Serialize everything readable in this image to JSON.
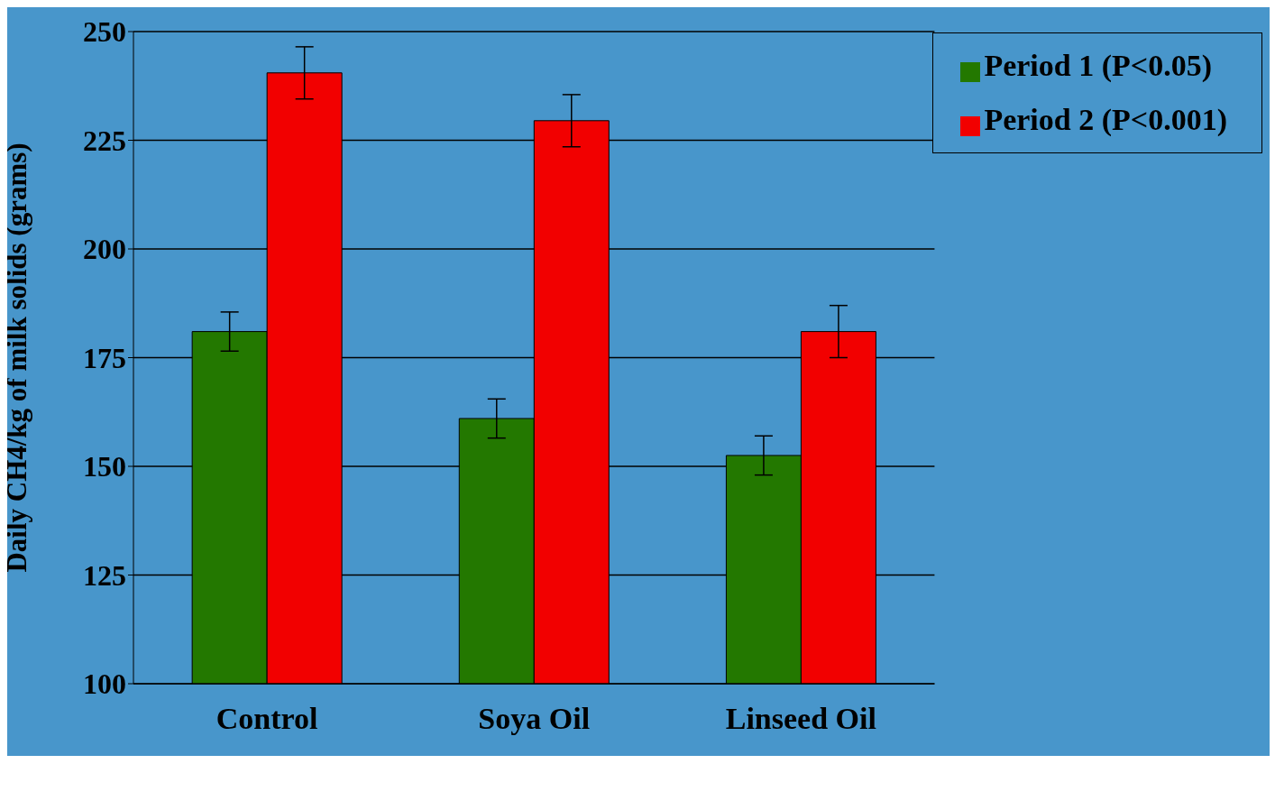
{
  "chart_data": {
    "type": "bar",
    "ylabel": "Daily CH4/kg of milk solids (grams)",
    "categories": [
      "Control",
      "Soya Oil",
      "Linseed Oil"
    ],
    "series": [
      {
        "name": "Period 1 (P<0.05)",
        "color": "#237800",
        "values": [
          181,
          161,
          152.5
        ],
        "errors": [
          4.5,
          4.5,
          4.5
        ]
      },
      {
        "name": "Period 2 (P<0.001)",
        "color": "#f20000",
        "values": [
          240.5,
          229.5,
          181
        ],
        "errors": [
          6,
          6,
          6
        ]
      }
    ],
    "ylim": [
      100,
      250
    ],
    "yticks": [
      100,
      125,
      150,
      175,
      200,
      225,
      250
    ],
    "grid": "y",
    "legend": "top right"
  }
}
